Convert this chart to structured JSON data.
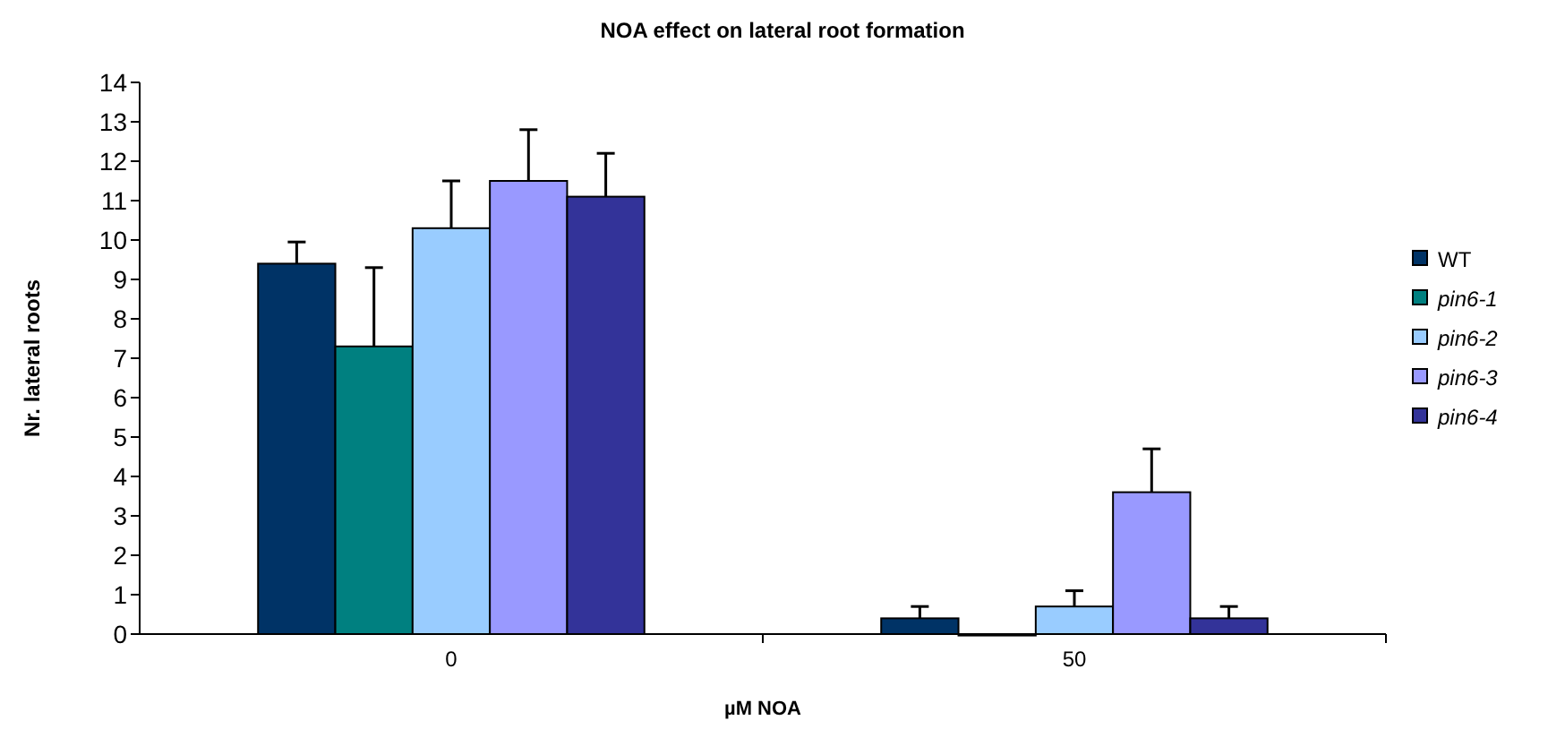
{
  "chart_data": {
    "type": "bar",
    "title": "NOA effect on lateral root formation",
    "xlabel": "µM NOA",
    "ylabel": "Nr. lateral roots",
    "categories": [
      "0",
      "50"
    ],
    "series": [
      {
        "name": "WT",
        "color": "#003366",
        "values": [
          9.4,
          0.4
        ],
        "errors": [
          0.55,
          0.3
        ]
      },
      {
        "name": "pin6-1",
        "color": "#008080",
        "values": [
          7.3,
          0
        ],
        "errors": [
          2.0,
          null
        ]
      },
      {
        "name": "pin6-2",
        "color": "#99ccff",
        "values": [
          10.3,
          0.7
        ],
        "errors": [
          1.2,
          0.4
        ]
      },
      {
        "name": "pin6-3",
        "color": "#9999ff",
        "values": [
          11.5,
          3.6
        ],
        "errors": [
          1.3,
          1.1
        ]
      },
      {
        "name": "pin6-4",
        "color": "#333399",
        "values": [
          11.1,
          0.4
        ],
        "errors": [
          1.1,
          0.3
        ]
      }
    ],
    "ylim": [
      0,
      14
    ],
    "yticks": [
      0,
      1,
      2,
      3,
      4,
      5,
      6,
      7,
      8,
      9,
      10,
      11,
      12,
      13,
      14
    ],
    "grid": false,
    "legend": "right"
  }
}
